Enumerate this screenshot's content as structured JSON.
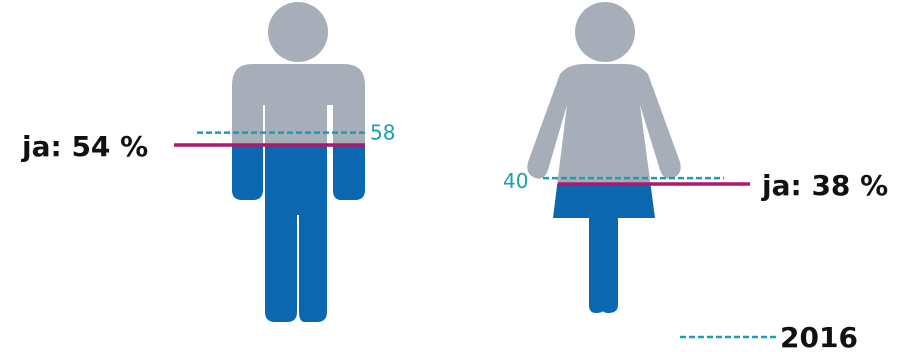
{
  "chart_data": {
    "type": "bar",
    "categories": [
      "male",
      "female"
    ],
    "series": [
      {
        "values": [
          54,
          38
        ]
      },
      {
        "name": "2016",
        "values": [
          58,
          40
        ]
      }
    ],
    "labels": {
      "male_current": "ja: 54 %",
      "female_current": "ja: 38 %",
      "male_previous": "58",
      "female_previous": "40"
    },
    "legend": {
      "label": "2016",
      "placement": "bottom-right"
    },
    "ylim": [
      0,
      100
    ]
  },
  "colors": {
    "figure_gray": "#a7aeb9",
    "figure_blue": "#0a67b0",
    "current_line": "#b0176e",
    "previous_line": "#1a9fb0",
    "label_text": "#111111"
  },
  "icons": [
    "male-figure-icon",
    "female-figure-icon"
  ]
}
